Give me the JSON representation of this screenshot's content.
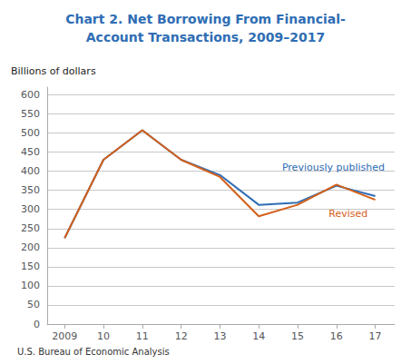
{
  "chart_data": {
    "type": "line",
    "title": "Chart 2. Net Borrowing From Financial-\nAccount Transactions, 2009–2017",
    "title_color": "#2e6db4",
    "ylabel": "Billions of dollars",
    "footnote": "U.S. Bureau of Economic Analysis",
    "x": [
      2009,
      2010,
      2011,
      2012,
      2013,
      2014,
      2015,
      2016,
      2017
    ],
    "series": [
      {
        "name": "Previously published",
        "color": "#2e6db4",
        "values": [
          225,
          430,
          507,
          430,
          390,
          312,
          318,
          362,
          335
        ]
      },
      {
        "name": "Revised",
        "color": "#d4601a",
        "values": [
          225,
          430,
          507,
          430,
          385,
          282,
          312,
          365,
          325
        ]
      }
    ],
    "annotations": [
      {
        "text": "Previously published",
        "color": "#2e6db4",
        "x": 2014.6,
        "y": 396
      },
      {
        "text": "Revised",
        "color": "#d4601a",
        "x": 2015.8,
        "y": 302
      }
    ],
    "xlim": [
      2008.55,
      2017.5
    ],
    "xticks": [
      2009,
      {
        "value": 2010,
        "label": "10"
      },
      {
        "value": 2011,
        "label": "11"
      },
      {
        "value": 2012,
        "label": "12"
      },
      {
        "value": 2013,
        "label": "13"
      },
      {
        "value": 2014,
        "label": "14"
      },
      {
        "value": 2015,
        "label": "15"
      },
      {
        "value": 2016,
        "label": "16"
      },
      {
        "value": 2017,
        "label": "17"
      }
    ],
    "ylim": [
      0,
      620
    ],
    "yticks": [
      0,
      50,
      100,
      150,
      200,
      250,
      300,
      350,
      400,
      450,
      500,
      550,
      600
    ],
    "grid": "y"
  }
}
